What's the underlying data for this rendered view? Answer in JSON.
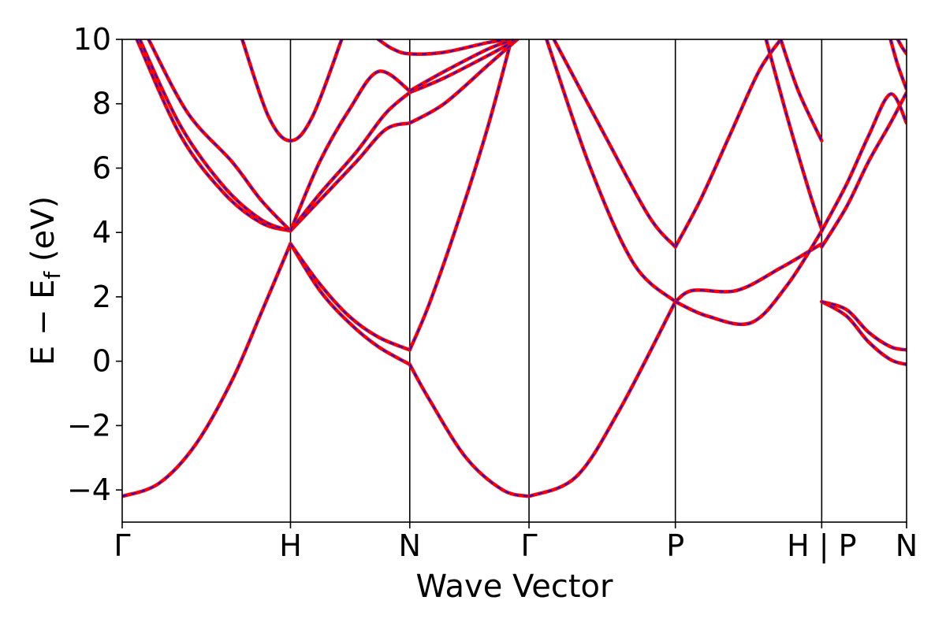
{
  "chart_data": {
    "type": "line",
    "xlabel": "Wave Vector",
    "ylabel_main": "E − E",
    "ylabel_sub": "f",
    "ylabel_unit": " (eV)",
    "ylim": [
      -5,
      10
    ],
    "xlim": [
      0,
      5.36
    ],
    "y_ticks": [
      -4,
      -2,
      0,
      2,
      4,
      6,
      8,
      10
    ],
    "y_tick_labels": [
      "−4",
      "−2",
      "0",
      "2",
      "4",
      "6",
      "8",
      "10"
    ],
    "k_points": [
      {
        "label": "Γ",
        "x": 0.0
      },
      {
        "label": "H",
        "x": 1.15
      },
      {
        "label": "N",
        "x": 1.965
      },
      {
        "label": "Γ",
        "x": 2.78
      },
      {
        "label": "P",
        "x": 3.78
      },
      {
        "label": "H | P",
        "x": 4.78
      },
      {
        "label": "N",
        "x": 5.36
      }
    ],
    "series_colors": {
      "reference": "#ff0000",
      "overlay": "#0000ff"
    },
    "series": [
      {
        "x": [
          0.0,
          0.25,
          0.5,
          0.75,
          0.95,
          1.15
        ],
        "y": [
          -4.2,
          -3.8,
          -2.6,
          -0.6,
          1.5,
          3.65
        ]
      },
      {
        "x": [
          1.15,
          1.35,
          1.55,
          1.75,
          1.965
        ],
        "y": [
          3.65,
          2.2,
          1.2,
          0.45,
          -0.1
        ]
      },
      {
        "x": [
          1.965,
          2.1,
          2.35,
          2.6,
          2.78
        ],
        "y": [
          -0.1,
          -1.2,
          -3.0,
          -4.0,
          -4.2
        ]
      },
      {
        "x": [
          1.15,
          1.35,
          1.55,
          1.75,
          1.965
        ],
        "y": [
          3.65,
          2.4,
          1.4,
          0.75,
          0.35
        ]
      },
      {
        "x": [
          1.965,
          2.1,
          2.3,
          2.5,
          2.66
        ],
        "y": [
          0.35,
          1.8,
          4.4,
          7.3,
          10.0
        ]
      },
      {
        "x": [
          0.1,
          0.4,
          0.7,
          0.95,
          1.15
        ],
        "y": [
          10.0,
          7.0,
          5.2,
          4.3,
          4.05
        ]
      },
      {
        "x": [
          0.12,
          0.4,
          0.7,
          0.95,
          1.15
        ],
        "y": [
          10.0,
          7.3,
          5.4,
          4.4,
          4.05
        ]
      },
      {
        "x": [
          0.18,
          0.45,
          0.75,
          0.95,
          1.15
        ],
        "y": [
          10.0,
          7.7,
          6.2,
          5.0,
          4.05
        ]
      },
      {
        "x": [
          1.15,
          1.35,
          1.6,
          1.8,
          1.965
        ],
        "y": [
          4.05,
          5.0,
          6.2,
          7.2,
          7.4
        ]
      },
      {
        "x": [
          1.965,
          2.2,
          2.5,
          2.7
        ],
        "y": [
          7.4,
          8.0,
          9.2,
          10.0
        ]
      },
      {
        "x": [
          1.15,
          1.35,
          1.6,
          1.8,
          1.965
        ],
        "y": [
          4.05,
          5.2,
          6.5,
          7.7,
          8.35
        ]
      },
      {
        "x": [
          1.965,
          2.2,
          2.5,
          2.7
        ],
        "y": [
          8.35,
          8.8,
          9.5,
          10.0
        ]
      },
      {
        "x": [
          1.15,
          1.35,
          1.55,
          1.75,
          1.965
        ],
        "y": [
          4.05,
          6.2,
          7.8,
          9.0,
          8.4
        ]
      },
      {
        "x": [
          1.965,
          2.2,
          2.5,
          2.68
        ],
        "y": [
          8.4,
          9.0,
          9.7,
          10.0
        ]
      },
      {
        "x": [
          0.82,
          1.0,
          1.15,
          1.3,
          1.5
        ],
        "y": [
          10.0,
          7.6,
          6.85,
          7.6,
          10.0
        ]
      },
      {
        "x": [
          1.75,
          1.85,
          1.965,
          2.2,
          2.5,
          2.65
        ],
        "y": [
          10.0,
          9.7,
          9.55,
          9.6,
          9.9,
          10.0
        ]
      },
      {
        "x": [
          2.78,
          3.1,
          3.4,
          3.78
        ],
        "y": [
          -4.2,
          -3.6,
          -1.5,
          1.85
        ]
      },
      {
        "x": [
          3.78,
          3.9,
          4.2,
          4.5,
          4.78
        ],
        "y": [
          1.85,
          2.2,
          2.2,
          2.9,
          3.65
        ]
      },
      {
        "x": [
          2.9,
          3.2,
          3.5,
          3.78
        ],
        "y": [
          10.0,
          6.0,
          3.0,
          1.85
        ]
      },
      {
        "x": [
          3.78,
          4.0,
          4.3,
          4.55,
          4.78
        ],
        "y": [
          1.85,
          1.4,
          1.2,
          2.4,
          4.05
        ]
      },
      {
        "x": [
          2.95,
          3.3,
          3.6,
          3.78
        ],
        "y": [
          10.0,
          7.0,
          4.5,
          3.55
        ]
      },
      {
        "x": [
          3.78,
          3.95,
          4.15,
          4.35,
          4.5
        ],
        "y": [
          3.55,
          5.0,
          7.0,
          9.0,
          10.0
        ]
      },
      {
        "x": [
          4.5,
          4.62,
          4.78
        ],
        "y": [
          10.0,
          8.4,
          6.85
        ]
      },
      {
        "x": [
          4.4,
          4.55,
          4.7,
          4.78
        ],
        "y": [
          10.0,
          7.5,
          5.2,
          4.1
        ]
      },
      {
        "x": [
          4.78,
          4.95,
          5.1,
          5.25,
          5.36
        ],
        "y": [
          1.85,
          1.4,
          0.6,
          0.05,
          -0.1
        ]
      },
      {
        "x": [
          4.78,
          4.95,
          5.1,
          5.25,
          5.36
        ],
        "y": [
          1.85,
          1.6,
          0.9,
          0.45,
          0.35
        ]
      },
      {
        "x": [
          4.78,
          4.95,
          5.1,
          5.25,
          5.36
        ],
        "y": [
          3.55,
          4.8,
          6.2,
          7.4,
          8.35
        ]
      },
      {
        "x": [
          4.78,
          4.95,
          5.1,
          5.25,
          5.36
        ],
        "y": [
          4.05,
          5.5,
          7.0,
          8.3,
          7.4
        ]
      },
      {
        "x": [
          5.25,
          5.3,
          5.36
        ],
        "y": [
          10.0,
          9.2,
          8.45
        ]
      },
      {
        "x": [
          5.3,
          5.33,
          5.36
        ],
        "y": [
          10.0,
          9.75,
          9.55
        ]
      }
    ]
  }
}
